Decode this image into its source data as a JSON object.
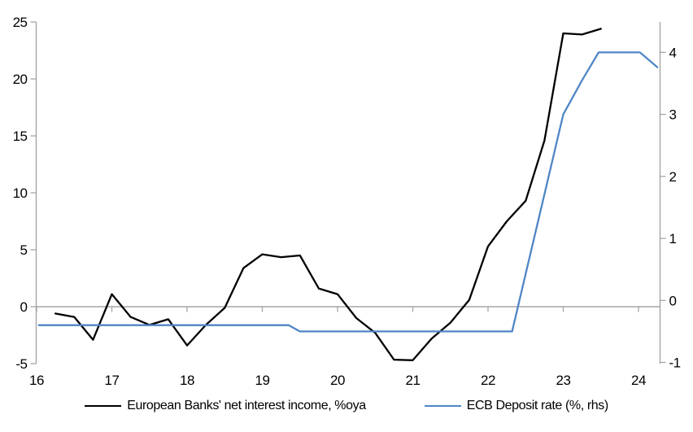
{
  "chart_data": {
    "type": "line",
    "title": "",
    "background_color": "#ffffff",
    "axis_color": "#a6a6a6",
    "zero_gridline_color": "#a6a6a6",
    "text_color": "#000000",
    "legend_position": "bottom",
    "x_axis": {
      "min": 16,
      "max": 24.281,
      "ticks": [
        16,
        17,
        18,
        19,
        20,
        21,
        22,
        23,
        24
      ]
    },
    "left_axis": {
      "min": -5,
      "max": 25,
      "ticks": [
        25,
        20,
        15,
        10,
        5,
        0,
        -5
      ]
    },
    "right_axis": {
      "min": -1.02,
      "max": 4.49,
      "ticks": [
        4,
        3,
        2,
        1,
        0,
        -1
      ]
    },
    "series": [
      {
        "name": "European Banks' net interest income, %oya",
        "color": "#000000",
        "axis": "left",
        "points": [
          [
            16.25,
            -0.6
          ],
          [
            16.5,
            -0.9
          ],
          [
            16.75,
            -2.9
          ],
          [
            17.0,
            1.1
          ],
          [
            17.25,
            -0.9
          ],
          [
            17.5,
            -1.6
          ],
          [
            17.75,
            -1.1
          ],
          [
            18.0,
            -3.4
          ],
          [
            18.25,
            -1.6
          ],
          [
            18.5,
            -0.1
          ],
          [
            18.75,
            3.4
          ],
          [
            19.0,
            4.6
          ],
          [
            19.25,
            4.35
          ],
          [
            19.5,
            4.5
          ],
          [
            19.75,
            1.6
          ],
          [
            20.0,
            1.1
          ],
          [
            20.25,
            -1.0
          ],
          [
            20.5,
            -2.3
          ],
          [
            20.75,
            -4.65
          ],
          [
            21.0,
            -4.7
          ],
          [
            21.25,
            -2.8
          ],
          [
            21.5,
            -1.4
          ],
          [
            21.75,
            0.6
          ],
          [
            22.0,
            5.3
          ],
          [
            22.25,
            7.5
          ],
          [
            22.5,
            9.3
          ],
          [
            22.75,
            14.6
          ],
          [
            23.0,
            24.0
          ],
          [
            23.25,
            23.9
          ],
          [
            23.5,
            24.4
          ]
        ]
      },
      {
        "name": "ECB Deposit rate (%, rhs)",
        "color": "#4F86C6",
        "axis": "right",
        "points": [
          [
            16.03,
            -0.4
          ],
          [
            19.35,
            -0.4
          ],
          [
            19.5,
            -0.5
          ],
          [
            22.32,
            -0.5
          ],
          [
            23.0,
            3.0
          ],
          [
            23.25,
            3.55
          ],
          [
            23.47,
            4.0
          ],
          [
            24.02,
            4.0
          ],
          [
            24.25,
            3.76
          ]
        ]
      }
    ]
  }
}
